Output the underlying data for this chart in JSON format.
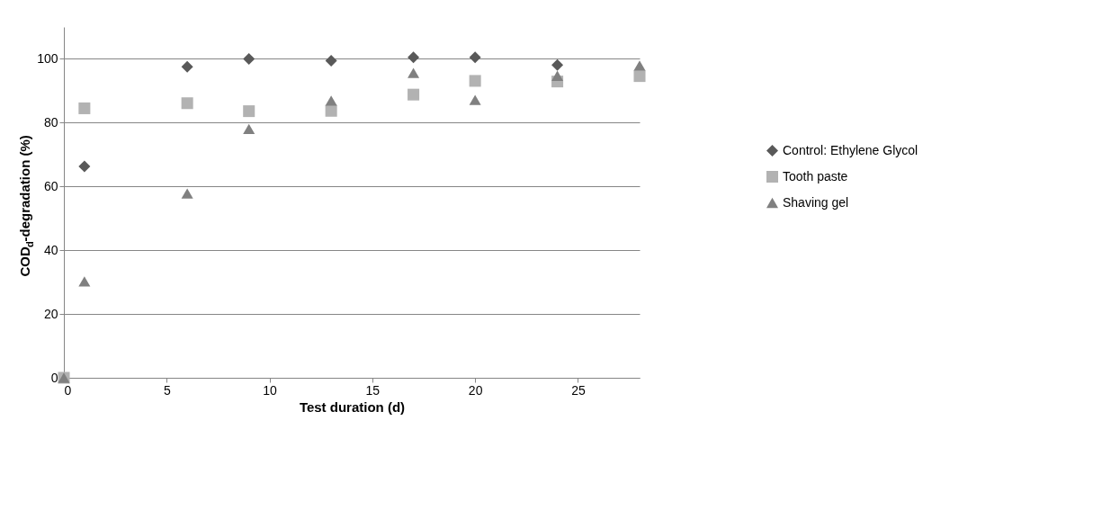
{
  "chart_data": {
    "type": "scatter",
    "xlabel": "Test duration (d)",
    "ylabel": "COD$_{d}$-degradation (%)",
    "x": [
      0,
      1,
      6,
      9,
      13,
      17,
      20,
      24,
      28
    ],
    "series": [
      {
        "name": "Control: Ethylene Glycol",
        "color": "#595959",
        "marker": "diamond",
        "values": [
          null,
          66.3,
          97.5,
          100,
          99.4,
          100.5,
          100.5,
          98.1,
          null
        ]
      },
      {
        "name": "Tooth paste",
        "color": "#b2b2b2",
        "marker": "square",
        "values": [
          0,
          84.5,
          86.1,
          83.6,
          83.7,
          88.8,
          93.1,
          92.9,
          94.6
        ]
      },
      {
        "name": "Shaving gel",
        "color": "#808080",
        "marker": "triangle",
        "values": [
          0,
          30.2,
          57.8,
          78,
          86.9,
          95.6,
          87.1,
          94.7,
          97.9
        ]
      }
    ],
    "xlim": [
      0,
      28
    ],
    "xticks": [
      0,
      5,
      10,
      15,
      20,
      25
    ],
    "ylim": [
      0,
      110
    ],
    "yticks": [
      0,
      20,
      40,
      60,
      80,
      100
    ],
    "grid": "y",
    "legend": "right"
  }
}
